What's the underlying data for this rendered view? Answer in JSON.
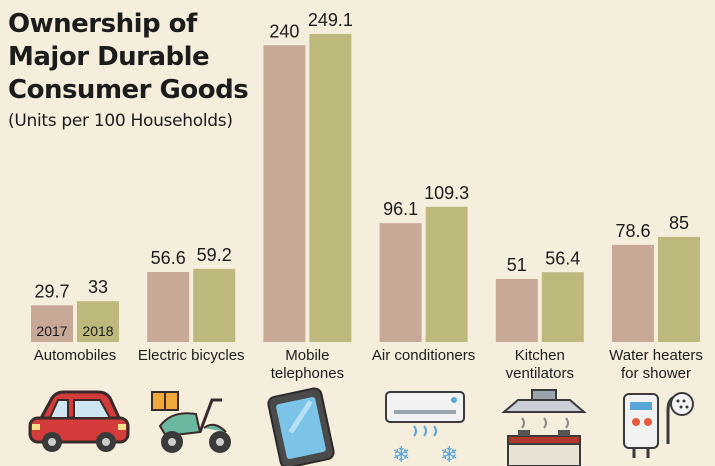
{
  "chart_data": {
    "type": "bar",
    "title": "Ownership of\nMajor Durable\nConsumer Goods",
    "subtitle": "(Units per 100 Households)",
    "categories": [
      "Automobiles",
      "Electric bicycles",
      "Mobile\ntelephones",
      "Air conditioners",
      "Kitchen\nventilators",
      "Water heaters\nfor shower"
    ],
    "series": [
      {
        "name": "2017",
        "values": [
          29.7,
          56.6,
          240,
          96.1,
          51,
          78.6
        ],
        "color": "#c8a897"
      },
      {
        "name": "2018",
        "values": [
          33,
          59.2,
          249.1,
          109.3,
          56.4,
          85
        ],
        "color": "#bdb97c"
      }
    ],
    "value_labels": [
      [
        "29.7",
        "56.6",
        "240",
        "96.1",
        "51",
        "78.6"
      ],
      [
        "33",
        "59.2",
        "249.1",
        "109.3",
        "56.4",
        "85"
      ]
    ],
    "legend": "inside-first-bars",
    "grid": false,
    "ylim": [
      0,
      249.1
    ],
    "icons": [
      "car-icon",
      "electric-bicycle-icon",
      "mobile-phone-icon",
      "air-conditioner-icon",
      "kitchen-ventilator-icon",
      "water-heater-icon"
    ]
  }
}
